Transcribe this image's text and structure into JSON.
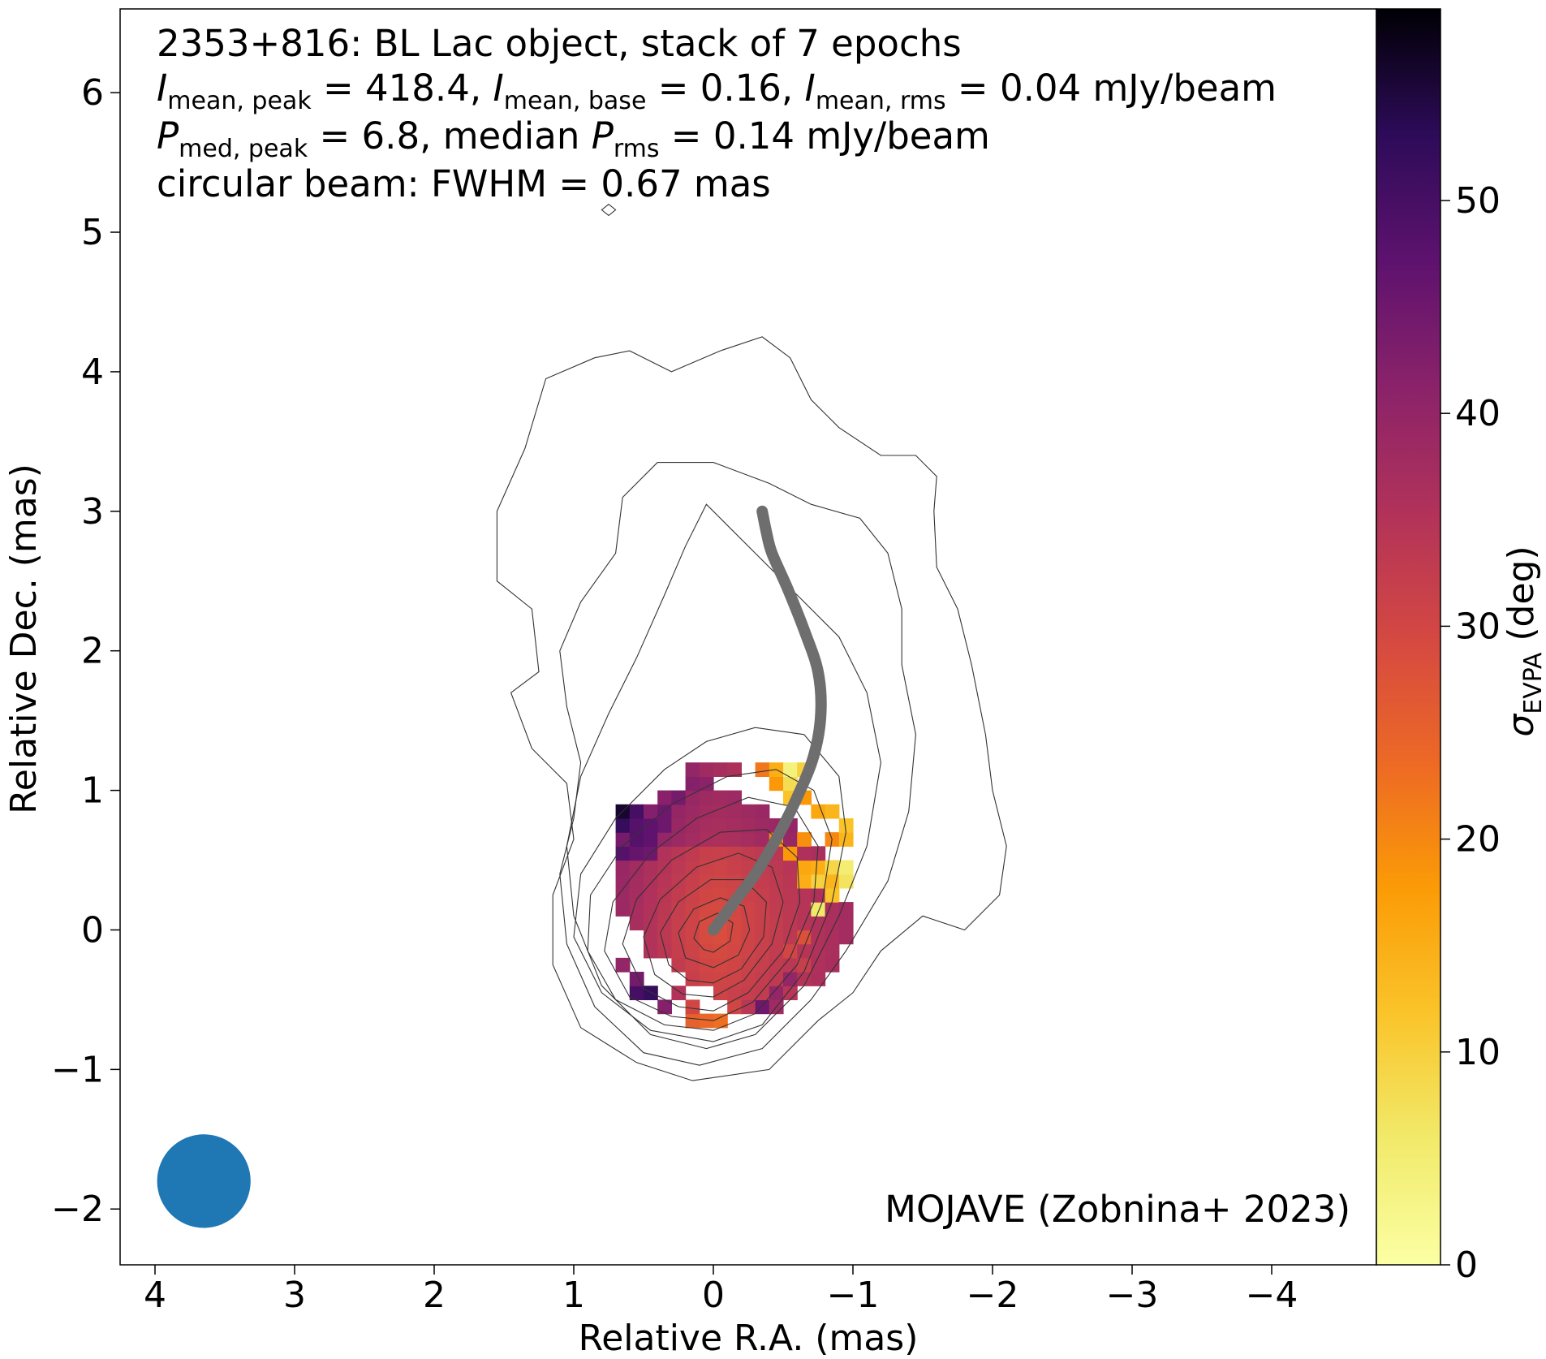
{
  "chart_data": {
    "type": "heatmap",
    "info_lines": [
      [
        "2353+816: BL Lac object, stack of 7 epochs"
      ],
      [
        "I",
        "mean, peak",
        " = 418.4, ",
        "I",
        "mean, base",
        " = 0.16, ",
        "I",
        "mean, rms",
        " = 0.04 mJy/beam"
      ],
      [
        "P",
        "med, peak",
        " = 6.8, median ",
        "P",
        "rms",
        " = 0.14 mJy/beam"
      ],
      [
        "circular beam: FWHM = 0.67 mas"
      ]
    ],
    "credit": "MOJAVE (Zobnina+ 2023)",
    "xlabel": "Relative R.A. (mas)",
    "ylabel": "Relative Dec. (mas)",
    "colorbar_label": {
      "symbol": "σ",
      "subscript": "EVPA",
      "unit": " (deg)"
    },
    "xlim": [
      4.25,
      -4.75
    ],
    "ylim": [
      -2.4,
      6.6
    ],
    "xticks": [
      4,
      3,
      2,
      1,
      0,
      -1,
      -2,
      -3,
      -4
    ],
    "xtick_labels": [
      "4",
      "3",
      "2",
      "1",
      "0",
      "−1",
      "−2",
      "−3",
      "−4"
    ],
    "yticks": [
      -2,
      -1,
      0,
      1,
      2,
      3,
      4,
      5,
      6
    ],
    "ytick_labels": [
      "−2",
      "−1",
      "0",
      "1",
      "2",
      "3",
      "4",
      "5",
      "6"
    ],
    "colorbar_range": [
      0,
      59
    ],
    "colorbar_ticks": [
      0,
      10,
      20,
      30,
      40,
      50
    ],
    "colorbar_tick_labels": [
      "0",
      "10",
      "20",
      "30",
      "40",
      "50"
    ],
    "colormap": "inferno_r",
    "beam": {
      "ra": 3.65,
      "dec": -1.8,
      "fwhm_mas": 0.67,
      "color": "#1f77b4"
    },
    "ridge_line": {
      "color": "#6e6e6e",
      "points": [
        [
          0.0,
          0.0
        ],
        [
          -0.15,
          0.2
        ],
        [
          -0.3,
          0.4
        ],
        [
          -0.45,
          0.65
        ],
        [
          -0.6,
          0.95
        ],
        [
          -0.72,
          1.25
        ],
        [
          -0.77,
          1.55
        ],
        [
          -0.75,
          1.85
        ],
        [
          -0.65,
          2.15
        ],
        [
          -0.53,
          2.45
        ],
        [
          -0.42,
          2.7
        ],
        [
          -0.38,
          2.85
        ],
        [
          -0.35,
          3.0
        ]
      ]
    },
    "contour_levels": [
      {
        "level": 1,
        "points": [
          [
            0.15,
            -1.08
          ],
          [
            -0.4,
            -1.0
          ],
          [
            -0.75,
            -0.65
          ],
          [
            -1.0,
            -0.45
          ],
          [
            -1.2,
            -0.15
          ],
          [
            -1.5,
            0.1
          ],
          [
            -1.8,
            0.0
          ],
          [
            -2.05,
            0.25
          ],
          [
            -2.1,
            0.6
          ],
          [
            -2.0,
            1.0
          ],
          [
            -1.95,
            1.4
          ],
          [
            -1.85,
            1.9
          ],
          [
            -1.75,
            2.3
          ],
          [
            -1.6,
            2.6
          ],
          [
            -1.58,
            3.0
          ],
          [
            -1.6,
            3.25
          ],
          [
            -1.45,
            3.4
          ],
          [
            -1.2,
            3.4
          ],
          [
            -0.9,
            3.6
          ],
          [
            -0.7,
            3.8
          ],
          [
            -0.55,
            4.1
          ],
          [
            -0.35,
            4.25
          ],
          [
            -0.05,
            4.15
          ],
          [
            0.3,
            4.0
          ],
          [
            0.6,
            4.15
          ],
          [
            0.85,
            4.1
          ],
          [
            1.2,
            3.95
          ],
          [
            1.35,
            3.45
          ],
          [
            1.55,
            3.0
          ],
          [
            1.55,
            2.5
          ],
          [
            1.3,
            2.3
          ],
          [
            1.25,
            1.85
          ],
          [
            1.45,
            1.7
          ],
          [
            1.3,
            1.3
          ],
          [
            1.05,
            1.05
          ],
          [
            1.0,
            0.65
          ],
          [
            1.15,
            0.25
          ],
          [
            1.15,
            -0.25
          ],
          [
            0.95,
            -0.7
          ],
          [
            0.55,
            -0.95
          ],
          [
            0.15,
            -1.08
          ]
        ]
      },
      {
        "level": 2,
        "points": [
          [
            0.1,
            -0.97
          ],
          [
            -0.35,
            -0.85
          ],
          [
            -0.7,
            -0.5
          ],
          [
            -0.95,
            -0.15
          ],
          [
            -1.25,
            0.35
          ],
          [
            -1.4,
            0.85
          ],
          [
            -1.45,
            1.4
          ],
          [
            -1.35,
            1.9
          ],
          [
            -1.35,
            2.3
          ],
          [
            -1.25,
            2.7
          ],
          [
            -1.05,
            2.95
          ],
          [
            -0.7,
            3.05
          ],
          [
            -0.4,
            3.2
          ],
          [
            0.0,
            3.35
          ],
          [
            0.4,
            3.35
          ],
          [
            0.65,
            3.1
          ],
          [
            0.7,
            2.7
          ],
          [
            0.95,
            2.35
          ],
          [
            1.1,
            2.0
          ],
          [
            1.05,
            1.6
          ],
          [
            0.95,
            1.2
          ],
          [
            1.0,
            0.8
          ],
          [
            1.1,
            0.4
          ],
          [
            1.05,
            -0.1
          ],
          [
            0.85,
            -0.55
          ],
          [
            0.5,
            -0.88
          ],
          [
            0.1,
            -0.97
          ]
        ]
      },
      {
        "level": 3,
        "points": [
          [
            0.05,
            -0.85
          ],
          [
            -0.3,
            -0.75
          ],
          [
            -0.65,
            -0.4
          ],
          [
            -0.9,
            0.1
          ],
          [
            -1.1,
            0.6
          ],
          [
            -1.2,
            1.2
          ],
          [
            -1.1,
            1.7
          ],
          [
            -0.9,
            2.1
          ],
          [
            -0.6,
            2.4
          ],
          [
            -0.3,
            2.7
          ],
          [
            0.05,
            3.05
          ],
          [
            0.2,
            2.75
          ],
          [
            0.35,
            2.4
          ],
          [
            0.55,
            1.95
          ],
          [
            0.75,
            1.55
          ],
          [
            0.95,
            1.1
          ],
          [
            1.05,
            0.6
          ],
          [
            1.0,
            0.1
          ],
          [
            0.8,
            -0.4
          ],
          [
            0.45,
            -0.75
          ],
          [
            0.05,
            -0.85
          ]
        ]
      },
      {
        "level": 4,
        "points": [
          [
            0.0,
            -0.8
          ],
          [
            -0.35,
            -0.68
          ],
          [
            -0.65,
            -0.3
          ],
          [
            -0.85,
            0.2
          ],
          [
            -0.95,
            0.7
          ],
          [
            -0.9,
            1.1
          ],
          [
            -0.65,
            1.4
          ],
          [
            -0.3,
            1.45
          ],
          [
            0.05,
            1.35
          ],
          [
            0.35,
            1.15
          ],
          [
            0.7,
            0.8
          ],
          [
            0.95,
            0.4
          ],
          [
            1.0,
            -0.05
          ],
          [
            0.8,
            -0.45
          ],
          [
            0.45,
            -0.72
          ],
          [
            0.0,
            -0.8
          ]
        ]
      },
      {
        "level": 5,
        "points": [
          [
            0.0,
            -0.72
          ],
          [
            -0.3,
            -0.6
          ],
          [
            -0.6,
            -0.25
          ],
          [
            -0.78,
            0.2
          ],
          [
            -0.85,
            0.65
          ],
          [
            -0.72,
            1.0
          ],
          [
            -0.45,
            1.15
          ],
          [
            -0.1,
            1.1
          ],
          [
            0.3,
            0.9
          ],
          [
            0.65,
            0.6
          ],
          [
            0.88,
            0.25
          ],
          [
            0.9,
            -0.15
          ],
          [
            0.7,
            -0.5
          ],
          [
            0.35,
            -0.68
          ],
          [
            0.0,
            -0.72
          ]
        ]
      },
      {
        "level": 6,
        "points": [
          [
            0.0,
            -0.65
          ],
          [
            -0.28,
            -0.52
          ],
          [
            -0.55,
            -0.2
          ],
          [
            -0.72,
            0.2
          ],
          [
            -0.75,
            0.6
          ],
          [
            -0.58,
            0.88
          ],
          [
            -0.25,
            0.95
          ],
          [
            0.12,
            0.8
          ],
          [
            0.45,
            0.55
          ],
          [
            0.72,
            0.2
          ],
          [
            0.78,
            -0.15
          ],
          [
            0.6,
            -0.48
          ],
          [
            0.3,
            -0.62
          ],
          [
            0.0,
            -0.65
          ]
        ]
      },
      {
        "level": 7,
        "points": [
          [
            0.0,
            -0.58
          ],
          [
            -0.25,
            -0.45
          ],
          [
            -0.5,
            -0.15
          ],
          [
            -0.62,
            0.2
          ],
          [
            -0.6,
            0.52
          ],
          [
            -0.38,
            0.72
          ],
          [
            -0.05,
            0.7
          ],
          [
            0.3,
            0.5
          ],
          [
            0.55,
            0.22
          ],
          [
            0.65,
            -0.1
          ],
          [
            0.5,
            -0.42
          ],
          [
            0.25,
            -0.55
          ],
          [
            0.0,
            -0.58
          ]
        ]
      },
      {
        "level": 8,
        "points": [
          [
            0.0,
            -0.48
          ],
          [
            -0.22,
            -0.36
          ],
          [
            -0.42,
            -0.1
          ],
          [
            -0.5,
            0.2
          ],
          [
            -0.42,
            0.45
          ],
          [
            -0.18,
            0.55
          ],
          [
            0.12,
            0.45
          ],
          [
            0.38,
            0.22
          ],
          [
            0.5,
            -0.05
          ],
          [
            0.42,
            -0.32
          ],
          [
            0.22,
            -0.46
          ],
          [
            0.0,
            -0.48
          ]
        ]
      },
      {
        "level": 9,
        "points": [
          [
            0.0,
            -0.38
          ],
          [
            -0.2,
            -0.28
          ],
          [
            -0.36,
            -0.05
          ],
          [
            -0.38,
            0.2
          ],
          [
            -0.22,
            0.36
          ],
          [
            0.02,
            0.36
          ],
          [
            0.25,
            0.2
          ],
          [
            0.38,
            -0.02
          ],
          [
            0.32,
            -0.25
          ],
          [
            0.18,
            -0.36
          ],
          [
            0.0,
            -0.38
          ]
        ]
      },
      {
        "level": 10,
        "points": [
          [
            0.0,
            -0.27
          ],
          [
            -0.18,
            -0.18
          ],
          [
            -0.26,
            0.0
          ],
          [
            -0.22,
            0.17
          ],
          [
            -0.05,
            0.23
          ],
          [
            0.14,
            0.15
          ],
          [
            0.25,
            -0.02
          ],
          [
            0.2,
            -0.2
          ],
          [
            0.0,
            -0.27
          ]
        ]
      },
      {
        "level": 11,
        "points": [
          [
            0.0,
            -0.16
          ],
          [
            -0.12,
            -0.08
          ],
          [
            -0.14,
            0.05
          ],
          [
            -0.03,
            0.12
          ],
          [
            0.1,
            0.06
          ],
          [
            0.14,
            -0.06
          ],
          [
            0.07,
            -0.14
          ],
          [
            0.0,
            -0.16
          ]
        ]
      }
    ],
    "small_contour": [
      [
        0.75,
        5.2
      ],
      [
        0.8,
        5.16
      ],
      [
        0.75,
        5.12
      ],
      [
        0.7,
        5.16
      ],
      [
        0.75,
        5.2
      ]
    ],
    "pixel_grid": {
      "cell_mas": 0.1,
      "cols_ra": [
        0.65,
        -1.05
      ],
      "rows_dec": [
        -0.65,
        1.2
      ]
    },
    "pixel_cells": [
      [
        0.65,
        0.85,
        56
      ],
      [
        0.55,
        0.85,
        50
      ],
      [
        0.55,
        0.75,
        48
      ],
      [
        0.45,
        0.75,
        47
      ],
      [
        0.45,
        0.65,
        47
      ],
      [
        0.55,
        0.65,
        48
      ],
      [
        0.65,
        0.75,
        52
      ],
      [
        0.65,
        0.55,
        48
      ],
      [
        0.55,
        0.55,
        46
      ],
      [
        0.45,
        0.55,
        45
      ],
      [
        0.35,
        0.85,
        45
      ],
      [
        0.35,
        0.75,
        45
      ],
      [
        0.25,
        0.95,
        44
      ],
      [
        0.15,
        1.05,
        42
      ],
      [
        0.15,
        1.15,
        40
      ],
      [
        0.05,
        1.15,
        38
      ],
      [
        -0.05,
        1.15,
        37
      ],
      [
        -0.15,
        1.15,
        36
      ],
      [
        0.05,
        1.05,
        41
      ],
      [
        -0.35,
        1.15,
        22
      ],
      [
        -0.45,
        1.15,
        15
      ],
      [
        -0.45,
        1.05,
        18
      ],
      [
        -0.55,
        1.05,
        8
      ],
      [
        -0.55,
        0.95,
        12
      ],
      [
        -0.65,
        0.95,
        18
      ],
      [
        -0.55,
        1.15,
        4
      ],
      [
        -0.65,
        1.15,
        10
      ],
      [
        -0.75,
        0.85,
        16
      ],
      [
        -0.85,
        0.85,
        14
      ],
      [
        -0.95,
        0.75,
        12
      ],
      [
        -0.85,
        0.65,
        20
      ],
      [
        -0.95,
        0.65,
        14
      ],
      [
        -0.75,
        0.45,
        15
      ],
      [
        -0.85,
        0.45,
        9
      ],
      [
        -0.85,
        0.35,
        14
      ],
      [
        -0.95,
        0.45,
        5
      ],
      [
        -0.95,
        0.35,
        7
      ],
      [
        -0.85,
        0.25,
        12
      ],
      [
        -0.75,
        0.15,
        6
      ],
      [
        -0.65,
        0.45,
        16
      ],
      [
        -0.65,
        0.35,
        15
      ],
      [
        -0.75,
        0.35,
        10
      ],
      [
        -0.55,
        0.55,
        18
      ],
      [
        -0.45,
        0.65,
        19
      ],
      [
        -0.65,
        0.65,
        19
      ],
      [
        0.65,
        -0.25,
        40
      ],
      [
        0.55,
        -0.35,
        44
      ],
      [
        0.55,
        -0.45,
        50
      ],
      [
        0.45,
        -0.45,
        52
      ],
      [
        0.35,
        -0.55,
        42
      ],
      [
        0.25,
        -0.45,
        35
      ],
      [
        0.15,
        -0.55,
        30
      ],
      [
        0.05,
        -0.65,
        24
      ],
      [
        -0.05,
        -0.65,
        23
      ],
      [
        0.15,
        -0.65,
        25
      ],
      [
        -0.15,
        -0.55,
        30
      ],
      [
        -0.25,
        -0.55,
        34
      ],
      [
        -0.35,
        -0.55,
        45
      ],
      [
        -0.45,
        -0.55,
        38
      ],
      [
        -0.55,
        -0.35,
        40
      ],
      [
        -0.65,
        -0.25,
        32
      ],
      [
        -0.55,
        -0.15,
        30
      ],
      [
        -0.65,
        -0.05,
        28
      ],
      [
        -0.45,
        -0.45,
        40
      ]
    ]
  }
}
